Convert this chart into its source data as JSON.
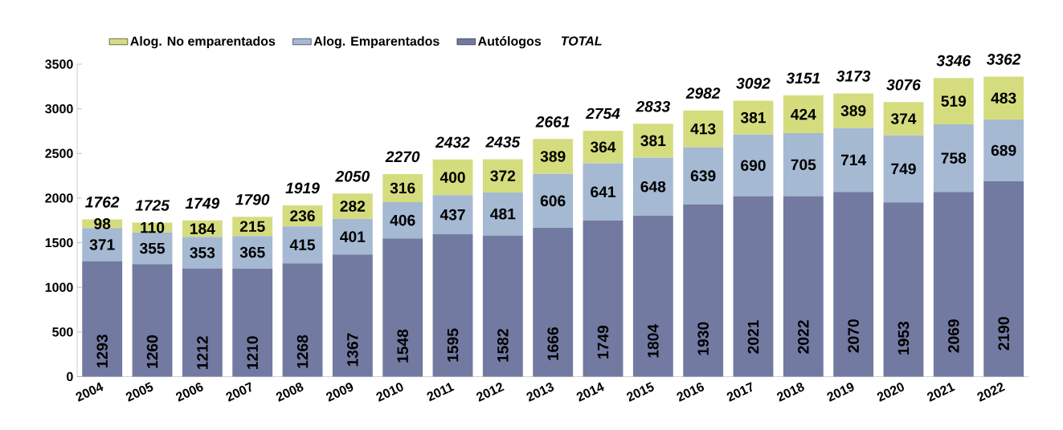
{
  "chart_data": {
    "type": "bar",
    "stacked": true,
    "categories": [
      "2004",
      "2005",
      "2006",
      "2007",
      "2008",
      "2009",
      "2010",
      "2011",
      "2012",
      "2013",
      "2014",
      "2015",
      "2016",
      "2017",
      "2018",
      "2019",
      "2020",
      "2021",
      "2022"
    ],
    "series": [
      {
        "name": "Autólogos",
        "color": "#727aa2",
        "values": [
          1293,
          1260,
          1212,
          1210,
          1268,
          1367,
          1548,
          1595,
          1582,
          1666,
          1749,
          1804,
          1930,
          2021,
          2022,
          2070,
          1953,
          2069,
          2190
        ]
      },
      {
        "name": "Alog. Emparentados",
        "color": "#a5b9d3",
        "values": [
          371,
          355,
          353,
          365,
          415,
          401,
          406,
          437,
          481,
          606,
          641,
          648,
          639,
          690,
          705,
          714,
          749,
          758,
          689
        ]
      },
      {
        "name": "Alog. No emparentados",
        "color": "#d5dc7e",
        "values": [
          98,
          110,
          184,
          215,
          236,
          282,
          316,
          400,
          372,
          389,
          364,
          381,
          413,
          381,
          424,
          389,
          374,
          519,
          483
        ]
      }
    ],
    "totals": [
      "1762",
      "1725",
      "1749",
      "1790",
      "1919",
      "2050",
      "2270",
      "2432",
      "2435",
      "2661",
      "2754",
      "2833",
      "2982",
      "3092",
      "3151",
      "3173",
      "3076",
      "3346",
      "3362"
    ],
    "annotations": [
      "TOTAL"
    ],
    "ylim": [
      0,
      3500
    ],
    "yticks": [
      0,
      500,
      1000,
      1500,
      2000,
      2500,
      3000,
      3500
    ],
    "data_labels": true,
    "legend": "top",
    "grid": false
  }
}
